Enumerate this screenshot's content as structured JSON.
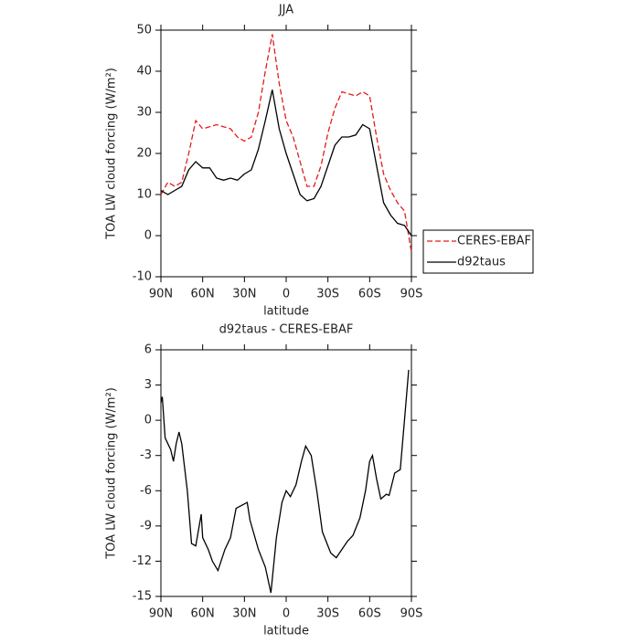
{
  "chart_data": [
    {
      "type": "line",
      "title": "JJA",
      "x_label": "latitude",
      "y_label": "TOA LW cloud forcing (W/m²)",
      "x": [
        90,
        85,
        80,
        75,
        70,
        65,
        60,
        55,
        50,
        45,
        40,
        35,
        30,
        25,
        20,
        15,
        10,
        5,
        0,
        -5,
        -10,
        -15,
        -20,
        -25,
        -30,
        -35,
        -40,
        -45,
        -50,
        -55,
        -60,
        -65,
        -70,
        -75,
        -80,
        -85,
        -90
      ],
      "series": [
        {
          "name": "CERES-EBAF",
          "color": "#e41a1c",
          "style": "dashed",
          "values": [
            10,
            13,
            12,
            13,
            20,
            28,
            26,
            26.5,
            27,
            26.5,
            26,
            24,
            23,
            24,
            30,
            40,
            49,
            37,
            28,
            24,
            18,
            12,
            12,
            17,
            25,
            31,
            35,
            34.5,
            34,
            35,
            34,
            24,
            15,
            11,
            8,
            6,
            -4
          ]
        },
        {
          "name": "d92taus",
          "color": "#000000",
          "style": "solid",
          "values": [
            11,
            10,
            11,
            12,
            16,
            18,
            16.5,
            16.5,
            14,
            13.5,
            14,
            13.5,
            15,
            16,
            21,
            28,
            35.5,
            26,
            20,
            15,
            10,
            8.5,
            9,
            12,
            17,
            22,
            24,
            24,
            24.5,
            27,
            26,
            17,
            8,
            5,
            3,
            2.5,
            0
          ]
        }
      ],
      "xlim": [
        90,
        -90
      ],
      "xticks": [
        {
          "value": 90,
          "label": "90N"
        },
        {
          "value": 60,
          "label": "60N"
        },
        {
          "value": 30,
          "label": "30N"
        },
        0,
        {
          "value": -30,
          "label": "30S"
        },
        {
          "value": -60,
          "label": "60S"
        },
        {
          "value": -90,
          "label": "90S"
        }
      ],
      "ylim": [
        -10,
        50
      ],
      "yticks": [
        -10,
        0,
        10,
        20,
        30,
        40,
        50
      ],
      "legend": "right"
    },
    {
      "type": "line",
      "title": "d92taus - CERES-EBAF",
      "x_label": "latitude",
      "y_label": "TOA LW cloud forcing (W/m²)",
      "color": "#000000",
      "x": [
        90,
        89,
        87,
        83,
        81,
        79,
        77,
        75,
        71,
        68,
        65,
        61,
        60,
        56,
        53,
        49,
        44,
        40,
        36,
        28,
        26,
        20,
        15,
        11,
        7,
        3,
        0,
        -3,
        -7,
        -11,
        -14,
        -18,
        -22,
        -26,
        -32,
        -36,
        -40,
        -44,
        -48,
        -53,
        -57,
        -60,
        -62,
        -65,
        -68,
        -72,
        -74,
        -78,
        -82,
        -85,
        -88
      ],
      "values": [
        1.5,
        2,
        -1.5,
        -2.5,
        -3.5,
        -2,
        -1,
        -2,
        -6,
        -10.5,
        -10.7,
        -8,
        -10,
        -11,
        -12,
        -12.8,
        -11,
        -10,
        -7.5,
        -7,
        -8.5,
        -11,
        -12.5,
        -14.7,
        -10,
        -7,
        -6,
        -6.5,
        -5.5,
        -3.5,
        -2.2,
        -3,
        -6,
        -9.5,
        -11.3,
        -11.7,
        -11,
        -10.3,
        -9.8,
        -8.3,
        -6,
        -3.5,
        -3,
        -5,
        -6.7,
        -6.3,
        -6.4,
        -4.5,
        -4.2,
        0,
        4.3
      ],
      "xlim": [
        90,
        -90
      ],
      "xticks": [
        {
          "value": 90,
          "label": "90N"
        },
        {
          "value": 60,
          "label": "60N"
        },
        {
          "value": 30,
          "label": "30N"
        },
        0,
        {
          "value": -30,
          "label": "30S"
        },
        {
          "value": -60,
          "label": "60S"
        },
        {
          "value": -90,
          "label": "90S"
        }
      ],
      "ylim": [
        -15,
        6
      ],
      "yticks": [
        -15,
        -12,
        -9,
        -6,
        -3,
        0,
        3,
        6
      ]
    }
  ]
}
